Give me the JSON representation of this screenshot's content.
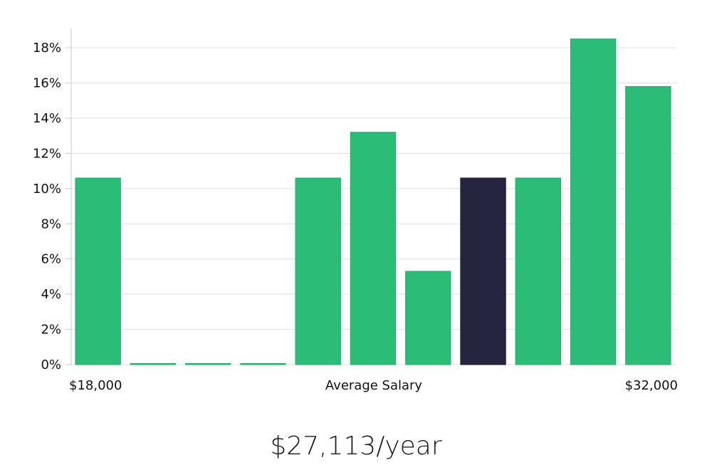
{
  "chart_data": {
    "type": "bar",
    "title": "",
    "xlabel": "Average Salary",
    "ylabel": "",
    "x_min_label": "$18,000",
    "x_max_label": "$32,000",
    "ylim": [
      0,
      19.5
    ],
    "yticks": [
      0,
      2,
      4,
      6,
      8,
      10,
      12,
      14,
      16,
      18
    ],
    "ytick_suffix": "%",
    "grid": true,
    "values": [
      10.6,
      0,
      0,
      0,
      10.6,
      13.2,
      5.3,
      10.6,
      10.6,
      18.5,
      15.8
    ],
    "highlight_index": 7,
    "colors": {
      "bar": "#2bbd77",
      "highlight": "#27243f",
      "grid": "#dddddd",
      "axis": "#cccccc"
    }
  },
  "summary": {
    "salary_label": "$27,113/year"
  }
}
